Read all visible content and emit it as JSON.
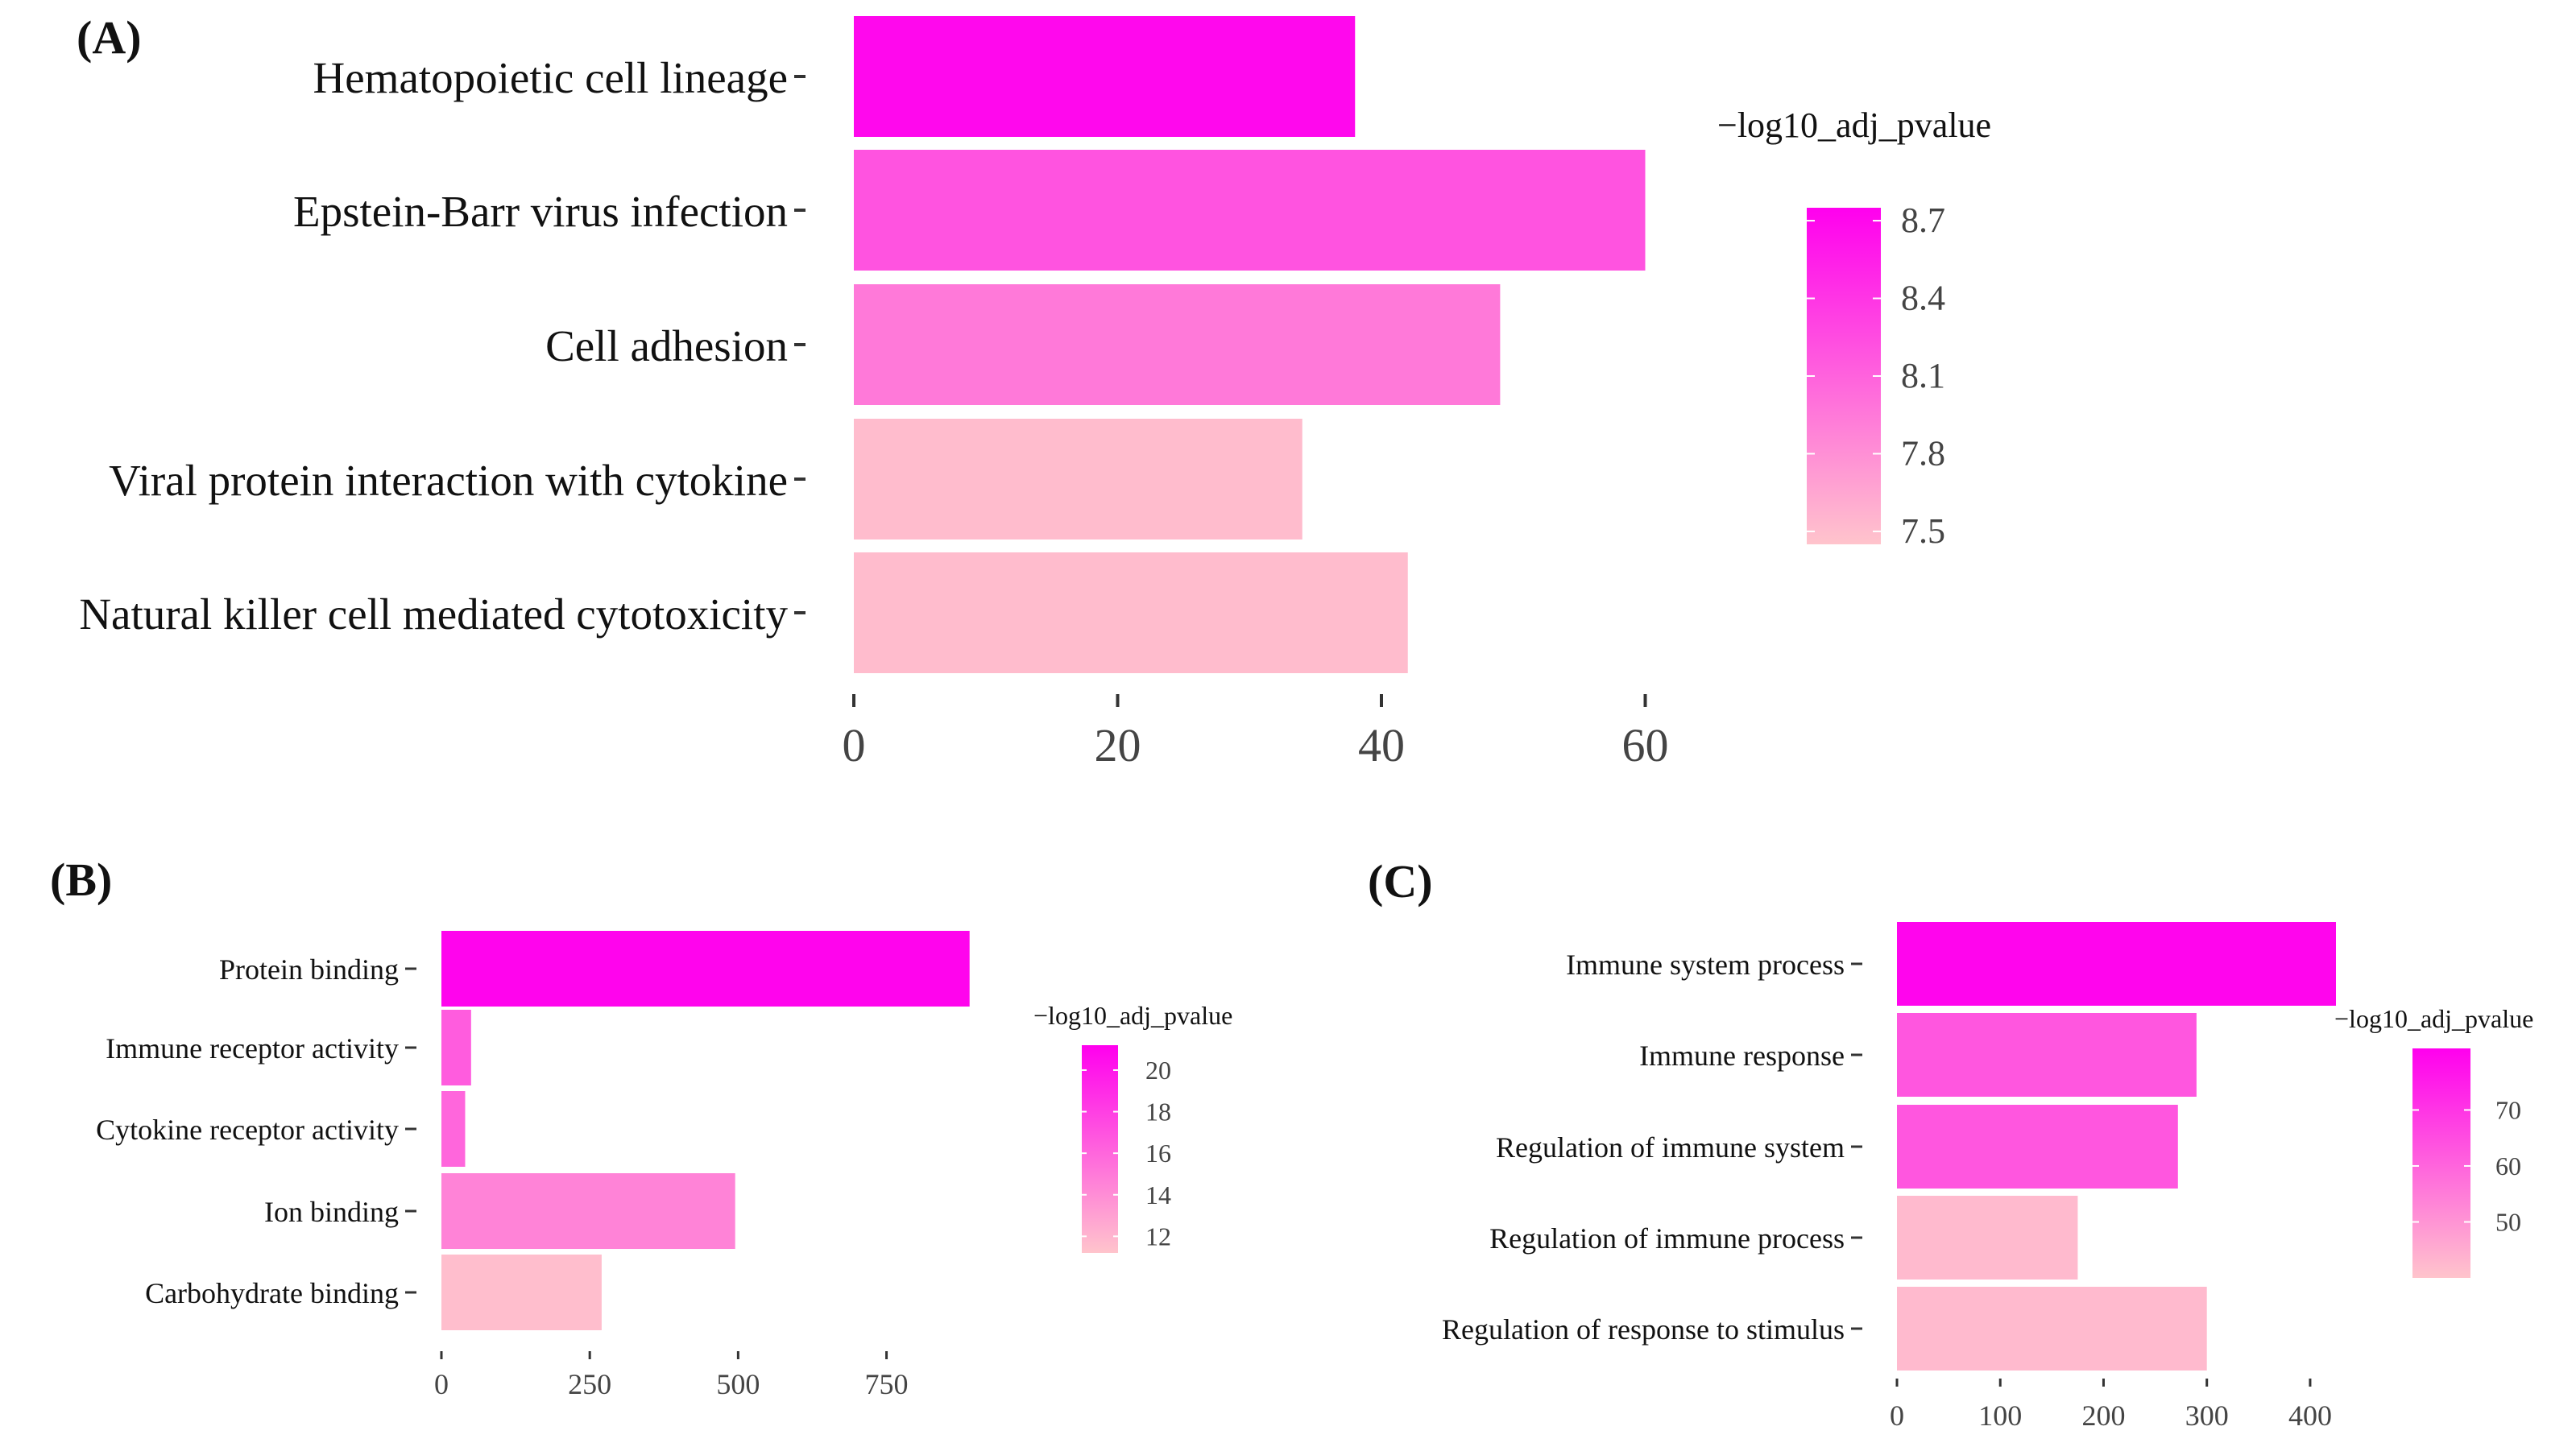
{
  "chart_data": [
    {
      "id": "A",
      "panel_label": "(A)",
      "type": "bar",
      "orientation": "horizontal",
      "categories": [
        "Hematopoietic cell lineage",
        "Epstein-Barr virus infection",
        "Cell adhesion",
        "Viral protein interaction with cytokine",
        "Natural killer cell mediated cytotoxicity"
      ],
      "values": [
        38,
        60,
        49,
        34,
        42
      ],
      "color_values": [
        8.7,
        8.2,
        7.95,
        7.5,
        7.5
      ],
      "xlim": [
        0,
        64
      ],
      "xticks": [
        0,
        20,
        40,
        60
      ],
      "xlabel": "",
      "ylabel": "",
      "legend": {
        "title": "−log10_adj_pvalue",
        "ticks": [
          8.7,
          8.4,
          8.1,
          7.8,
          7.5
        ],
        "range": [
          7.45,
          8.75
        ]
      },
      "colors": {
        "low": "#ffc4cc",
        "high": "#ff00ee"
      }
    },
    {
      "id": "B",
      "panel_label": "(B)",
      "type": "bar",
      "orientation": "horizontal",
      "categories": [
        "Protein binding",
        "Immune receptor activity",
        "Cytokine receptor activity",
        "Ion binding",
        "Carbohydrate binding"
      ],
      "values": [
        890,
        50,
        40,
        495,
        270
      ],
      "color_values": [
        21,
        16.5,
        16,
        14.5,
        11.5
      ],
      "xlim": [
        0,
        980
      ],
      "xticks": [
        0,
        250,
        500,
        750
      ],
      "xlabel": "",
      "ylabel": "",
      "legend": {
        "title": "−log10_adj_pvalue",
        "ticks": [
          20,
          18,
          16,
          14,
          12
        ],
        "range": [
          11.2,
          21.2
        ]
      },
      "colors": {
        "low": "#ffc4cc",
        "high": "#ff00ee"
      }
    },
    {
      "id": "C",
      "panel_label": "(C)",
      "type": "bar",
      "orientation": "horizontal",
      "categories": [
        "Immune system process",
        "Immune response",
        "Regulation of immune system",
        "Regulation of immune process",
        "Regulation of response to stimulus"
      ],
      "values": [
        425,
        290,
        272,
        175,
        300
      ],
      "color_values": [
        80,
        63,
        63,
        42,
        42
      ],
      "xlim": [
        0,
        425
      ],
      "xticks": [
        0,
        100,
        200,
        300,
        400
      ],
      "xlabel": "",
      "ylabel": "",
      "legend": {
        "title": "−log10_adj_pvalue",
        "ticks": [
          70,
          60,
          50
        ],
        "range": [
          40,
          81
        ]
      },
      "colors": {
        "low": "#ffc4cc",
        "high": "#ff00ee"
      }
    }
  ]
}
